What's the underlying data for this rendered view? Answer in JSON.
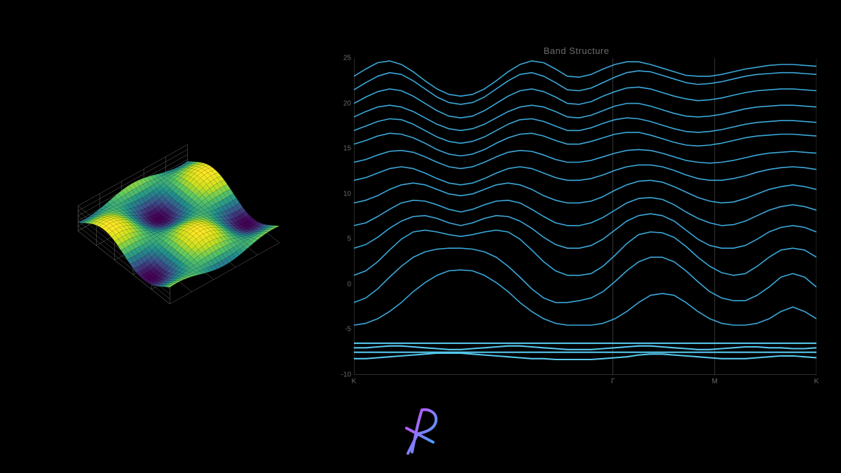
{
  "background_color": "#000000",
  "surface_plot": {
    "type": "3d-surface",
    "function": "saddle_wave",
    "grid_resolution": 30,
    "x_range": [
      -3,
      3
    ],
    "y_range": [
      -3,
      3
    ],
    "z_range": [
      -1,
      1
    ],
    "colormap": "viridis",
    "colormap_stops": [
      {
        "t": 0.0,
        "color": "#440154"
      },
      {
        "t": 0.2,
        "color": "#3b528b"
      },
      {
        "t": 0.4,
        "color": "#21918c"
      },
      {
        "t": 0.6,
        "color": "#5ec962"
      },
      {
        "t": 0.8,
        "color": "#c8e020"
      },
      {
        "t": 1.0,
        "color": "#fde725"
      }
    ],
    "wireframe_color": "#888888",
    "wireframe_width": 0.4,
    "box_grid_color": "#666666",
    "box_grid_width": 0.5,
    "azimuth": -50,
    "elevation": 25
  },
  "band_structure": {
    "type": "line",
    "title": "Band Structure",
    "title_fontsize": 13,
    "title_color": "#6a6a6a",
    "line_color": "#3ba8d9",
    "line_color_bright": "#56c8ef",
    "line_width": 1.6,
    "axis_color": "#555555",
    "tick_color": "#6a6a6a",
    "tick_fontsize": 10,
    "grid_color": "#444444",
    "y_label": "",
    "ylim": [
      -10,
      25
    ],
    "y_ticks": [
      -10,
      -5,
      0,
      5,
      10,
      15,
      20,
      25
    ],
    "x_symmetry_points": [
      {
        "label": "K",
        "pos": 0.0
      },
      {
        "label": "Γ",
        "pos": 0.56
      },
      {
        "label": "M",
        "pos": 0.78
      },
      {
        "label": "K",
        "pos": 1.0
      }
    ],
    "n_kpoints": 40,
    "bands": [
      [
        -8.2,
        -8.2,
        -8.1,
        -8.0,
        -7.9,
        -7.8,
        -7.7,
        -7.6,
        -7.6,
        -7.6,
        -7.7,
        -7.8,
        -7.9,
        -8.0,
        -8.1,
        -8.2,
        -8.2,
        -8.3,
        -8.3,
        -8.3,
        -8.3,
        -8.2,
        -8.1,
        -8.0,
        -7.8,
        -7.7,
        -7.7,
        -7.8,
        -7.9,
        -8.0,
        -8.1,
        -8.2,
        -8.2,
        -8.2,
        -8.1,
        -8.0,
        -7.9,
        -7.9,
        -8.0,
        -8.1
      ],
      [
        -7.5,
        -7.5,
        -7.5,
        -7.5,
        -7.5,
        -7.5,
        -7.5,
        -7.5,
        -7.5,
        -7.5,
        -7.5,
        -7.5,
        -7.5,
        -7.5,
        -7.5,
        -7.5,
        -7.5,
        -7.5,
        -7.5,
        -7.5,
        -7.5,
        -7.5,
        -7.5,
        -7.5,
        -7.5,
        -7.5,
        -7.5,
        -7.5,
        -7.5,
        -7.5,
        -7.5,
        -7.5,
        -7.5,
        -7.5,
        -7.5,
        -7.5,
        -7.5,
        -7.5,
        -7.5,
        -7.5
      ],
      [
        -7.0,
        -7.0,
        -6.9,
        -6.8,
        -6.8,
        -6.9,
        -7.0,
        -7.1,
        -7.2,
        -7.2,
        -7.1,
        -7.0,
        -6.9,
        -6.8,
        -6.8,
        -6.9,
        -7.0,
        -7.1,
        -7.2,
        -7.2,
        -7.2,
        -7.1,
        -7.0,
        -6.9,
        -6.8,
        -6.8,
        -6.9,
        -7.0,
        -7.1,
        -7.2,
        -7.2,
        -7.1,
        -7.0,
        -6.9,
        -6.9,
        -7.0,
        -7.0,
        -7.1,
        -7.1,
        -7.0
      ],
      [
        -6.5,
        -6.5,
        -6.5,
        -6.5,
        -6.5,
        -6.5,
        -6.5,
        -6.5,
        -6.5,
        -6.5,
        -6.5,
        -6.5,
        -6.5,
        -6.5,
        -6.5,
        -6.5,
        -6.5,
        -6.5,
        -6.5,
        -6.5,
        -6.5,
        -6.5,
        -6.5,
        -6.5,
        -6.5,
        -6.5,
        -6.5,
        -6.5,
        -6.5,
        -6.5,
        -6.5,
        -6.5,
        -6.5,
        -6.5,
        -6.5,
        -6.5,
        -6.5,
        -6.5,
        -6.5,
        -6.5
      ],
      [
        -4.5,
        -4.3,
        -3.8,
        -3.0,
        -2.0,
        -0.8,
        0.2,
        1.0,
        1.5,
        1.6,
        1.5,
        1.0,
        0.2,
        -0.8,
        -2.0,
        -3.0,
        -3.8,
        -4.3,
        -4.5,
        -4.5,
        -4.5,
        -4.3,
        -3.8,
        -3.0,
        -2.0,
        -1.2,
        -1.0,
        -1.2,
        -2.0,
        -3.0,
        -3.8,
        -4.3,
        -4.5,
        -4.5,
        -4.3,
        -3.8,
        -3.0,
        -2.5,
        -3.0,
        -3.8
      ],
      [
        -2.0,
        -1.5,
        -0.5,
        0.8,
        2.0,
        3.0,
        3.6,
        3.9,
        4.0,
        4.0,
        3.9,
        3.6,
        3.0,
        2.0,
        0.8,
        -0.5,
        -1.5,
        -2.0,
        -2.0,
        -1.8,
        -1.5,
        -0.8,
        0.3,
        1.5,
        2.5,
        3.0,
        3.0,
        2.5,
        1.5,
        0.3,
        -0.8,
        -1.5,
        -1.8,
        -1.8,
        -1.2,
        -0.3,
        0.8,
        1.2,
        0.8,
        -0.3
      ],
      [
        1.0,
        1.5,
        2.5,
        3.8,
        5.0,
        5.8,
        6.0,
        5.8,
        5.5,
        5.3,
        5.5,
        5.8,
        6.0,
        5.8,
        5.0,
        3.8,
        2.5,
        1.5,
        1.0,
        1.0,
        1.2,
        2.0,
        3.2,
        4.5,
        5.5,
        5.8,
        5.7,
        5.2,
        4.2,
        3.0,
        2.0,
        1.3,
        1.0,
        1.2,
        2.0,
        3.0,
        3.8,
        4.0,
        3.8,
        3.0
      ],
      [
        4.0,
        4.4,
        5.2,
        6.2,
        7.0,
        7.5,
        7.6,
        7.3,
        6.8,
        6.5,
        6.8,
        7.3,
        7.6,
        7.5,
        7.0,
        6.2,
        5.2,
        4.4,
        4.0,
        4.0,
        4.3,
        5.0,
        6.0,
        7.0,
        7.6,
        7.8,
        7.6,
        7.0,
        6.0,
        5.0,
        4.3,
        4.0,
        4.0,
        4.3,
        5.0,
        5.8,
        6.3,
        6.5,
        6.3,
        5.8
      ],
      [
        6.5,
        6.8,
        7.5,
        8.3,
        9.0,
        9.3,
        9.2,
        8.8,
        8.3,
        8.0,
        8.3,
        8.8,
        9.2,
        9.3,
        9.0,
        8.3,
        7.5,
        6.8,
        6.5,
        6.5,
        6.8,
        7.4,
        8.2,
        9.0,
        9.5,
        9.6,
        9.4,
        8.8,
        8.0,
        7.3,
        6.8,
        6.5,
        6.6,
        7.0,
        7.6,
        8.2,
        8.6,
        8.8,
        8.6,
        8.2
      ],
      [
        9.0,
        9.3,
        9.8,
        10.5,
        11.0,
        11.2,
        11.0,
        10.5,
        10.0,
        9.8,
        10.0,
        10.5,
        11.0,
        11.2,
        11.0,
        10.5,
        9.8,
        9.3,
        9.0,
        9.0,
        9.2,
        9.7,
        10.4,
        11.0,
        11.4,
        11.5,
        11.3,
        10.8,
        10.2,
        9.6,
        9.2,
        9.0,
        9.1,
        9.5,
        10.0,
        10.5,
        10.8,
        11.0,
        10.8,
        10.5
      ],
      [
        11.5,
        11.8,
        12.3,
        12.8,
        13.0,
        12.8,
        12.3,
        11.7,
        11.2,
        11.0,
        11.2,
        11.7,
        12.3,
        12.8,
        13.0,
        12.8,
        12.3,
        11.8,
        11.5,
        11.5,
        11.7,
        12.1,
        12.6,
        13.0,
        13.2,
        13.2,
        13.0,
        12.6,
        12.1,
        11.7,
        11.5,
        11.5,
        11.7,
        12.0,
        12.4,
        12.7,
        12.9,
        13.0,
        12.9,
        12.7
      ],
      [
        13.5,
        13.8,
        14.3,
        14.7,
        14.8,
        14.6,
        14.1,
        13.5,
        13.0,
        12.8,
        13.0,
        13.5,
        14.1,
        14.6,
        14.8,
        14.7,
        14.3,
        13.8,
        13.5,
        13.5,
        13.7,
        14.1,
        14.5,
        14.8,
        14.9,
        14.8,
        14.5,
        14.1,
        13.7,
        13.5,
        13.4,
        13.5,
        13.7,
        14.0,
        14.3,
        14.5,
        14.6,
        14.7,
        14.6,
        14.5
      ],
      [
        15.5,
        15.9,
        16.4,
        16.7,
        16.6,
        16.2,
        15.6,
        14.9,
        14.4,
        14.2,
        14.4,
        14.9,
        15.6,
        16.2,
        16.6,
        16.7,
        16.4,
        15.9,
        15.5,
        15.5,
        15.8,
        16.2,
        16.6,
        16.8,
        16.8,
        16.5,
        16.1,
        15.7,
        15.4,
        15.3,
        15.4,
        15.6,
        15.9,
        16.2,
        16.4,
        16.5,
        16.6,
        16.6,
        16.5,
        16.4
      ],
      [
        17.0,
        17.5,
        18.0,
        18.3,
        18.2,
        17.7,
        17.0,
        16.3,
        15.8,
        15.6,
        15.8,
        16.3,
        17.0,
        17.7,
        18.2,
        18.3,
        18.0,
        17.5,
        17.0,
        17.0,
        17.3,
        17.8,
        18.2,
        18.4,
        18.3,
        18.0,
        17.6,
        17.2,
        16.9,
        16.8,
        16.9,
        17.1,
        17.4,
        17.7,
        17.9,
        18.0,
        18.1,
        18.1,
        18.0,
        17.9
      ],
      [
        18.5,
        19.1,
        19.6,
        19.8,
        19.6,
        19.1,
        18.4,
        17.7,
        17.2,
        17.0,
        17.2,
        17.7,
        18.4,
        19.1,
        19.6,
        19.8,
        19.6,
        19.1,
        18.5,
        18.4,
        18.7,
        19.2,
        19.7,
        20.0,
        20.0,
        19.7,
        19.3,
        18.9,
        18.6,
        18.5,
        18.6,
        18.8,
        19.1,
        19.4,
        19.6,
        19.7,
        19.8,
        19.8,
        19.7,
        19.6
      ],
      [
        20.0,
        20.7,
        21.3,
        21.6,
        21.4,
        20.8,
        20.0,
        19.2,
        18.6,
        18.4,
        18.6,
        19.2,
        20.0,
        20.8,
        21.4,
        21.6,
        21.3,
        20.7,
        20.0,
        19.9,
        20.2,
        20.8,
        21.3,
        21.7,
        21.8,
        21.6,
        21.2,
        20.8,
        20.5,
        20.3,
        20.4,
        20.6,
        20.9,
        21.2,
        21.4,
        21.5,
        21.6,
        21.6,
        21.5,
        21.4
      ],
      [
        21.5,
        22.3,
        23.0,
        23.4,
        23.2,
        22.5,
        21.6,
        20.7,
        20.1,
        19.9,
        20.1,
        20.7,
        21.6,
        22.5,
        23.2,
        23.4,
        23.0,
        22.3,
        21.5,
        21.4,
        21.7,
        22.3,
        22.9,
        23.4,
        23.6,
        23.5,
        23.1,
        22.7,
        22.3,
        22.1,
        22.2,
        22.4,
        22.7,
        23.0,
        23.2,
        23.3,
        23.4,
        23.4,
        23.3,
        23.2
      ],
      [
        23.0,
        23.8,
        24.5,
        24.7,
        24.3,
        23.5,
        22.5,
        21.6,
        21.0,
        20.8,
        21.0,
        21.6,
        22.5,
        23.5,
        24.3,
        24.7,
        24.5,
        23.8,
        23.0,
        22.9,
        23.2,
        23.8,
        24.3,
        24.6,
        24.6,
        24.3,
        23.9,
        23.5,
        23.1,
        23.0,
        23.0,
        23.2,
        23.5,
        23.8,
        24.0,
        24.2,
        24.3,
        24.3,
        24.2,
        24.1
      ]
    ]
  },
  "logo": {
    "gradient_from": "#e040fb",
    "gradient_to": "#29b6f6",
    "stroke_width": 4
  }
}
